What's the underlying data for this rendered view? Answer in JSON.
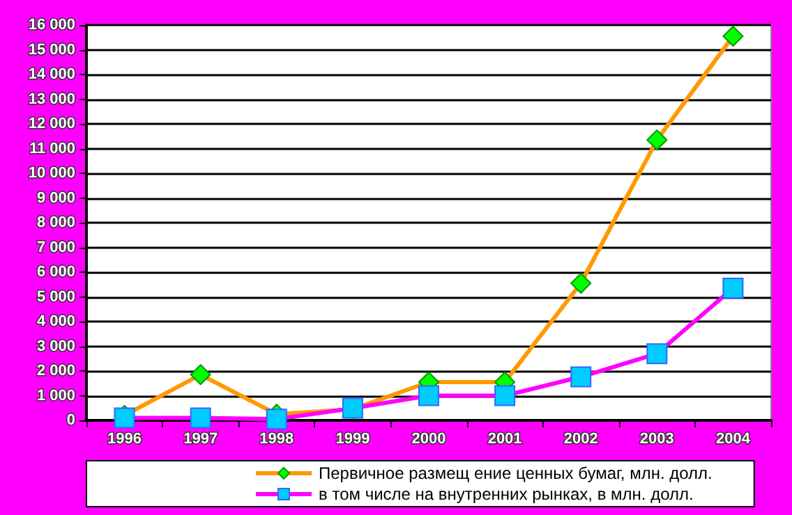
{
  "chart_data": {
    "type": "line",
    "categories": [
      "1996",
      "1997",
      "1998",
      "1999",
      "2000",
      "2001",
      "2002",
      "2003",
      "2004"
    ],
    "series": [
      {
        "name": "Первичное размещ ение ценных бумаг, млн. долл.",
        "color": "#ff9900",
        "marker": "diamond",
        "values": [
          200,
          1850,
          250,
          450,
          1550,
          1550,
          5550,
          11350,
          15550
        ]
      },
      {
        "name": "в том числе на внутренних рынках, в млн. долл.",
        "color": "#ff00ff",
        "marker": "square",
        "values": [
          100,
          100,
          50,
          490,
          1000,
          1000,
          1760,
          2700,
          5350
        ]
      }
    ],
    "ylim": [
      0,
      16000
    ],
    "yticks": [
      {
        "value": 0,
        "label": "0"
      },
      {
        "value": 1000,
        "label": "1 000"
      },
      {
        "value": 2000,
        "label": "2 000"
      },
      {
        "value": 3000,
        "label": "3 000"
      },
      {
        "value": 4000,
        "label": "4 000"
      },
      {
        "value": 5000,
        "label": "5 000"
      },
      {
        "value": 6000,
        "label": "6 000"
      },
      {
        "value": 7000,
        "label": "7 000"
      },
      {
        "value": 8000,
        "label": "8 000"
      },
      {
        "value": 9000,
        "label": "9 000"
      },
      {
        "value": 10000,
        "label": "10 000"
      },
      {
        "value": 11000,
        "label": "11 000"
      },
      {
        "value": 12000,
        "label": "12 000"
      },
      {
        "value": 13000,
        "label": "13 000"
      },
      {
        "value": 14000,
        "label": "14 000"
      },
      {
        "value": 15000,
        "label": "15 000"
      },
      {
        "value": 16000,
        "label": "16 000"
      }
    ],
    "grid": "y",
    "legend": "bottom"
  }
}
